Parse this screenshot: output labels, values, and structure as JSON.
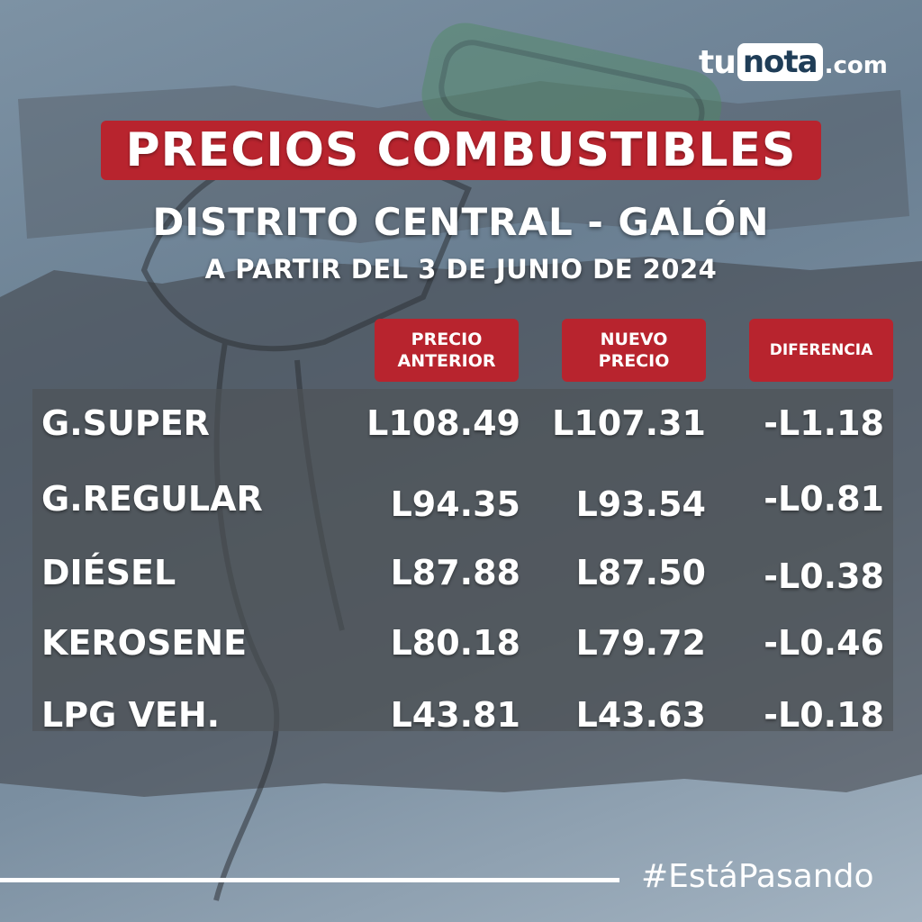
{
  "brand": {
    "logo_tu": "tu",
    "logo_nota": "nota",
    "logo_domain": ".com"
  },
  "header": {
    "title": "PRECIOS COMBUSTIBLES",
    "subtitle": "DISTRITO CENTRAL - GALÓN",
    "date_line": "A PARTIR DEL 3 DE JUNIO DE 2024"
  },
  "table": {
    "columns": [
      "PRECIO\nANTERIOR",
      "NUEVO\nPRECIO",
      "DIFERENCIA"
    ],
    "rows": [
      {
        "name": "G.SUPER",
        "previous": "L108.49",
        "new": "L107.31",
        "difference": "-L1.18"
      },
      {
        "name": "G.REGULAR",
        "previous": "L94.35",
        "new": "L93.54",
        "difference": "-L0.81"
      },
      {
        "name": "DIÉSEL",
        "previous": "L87.88",
        "new": "L87.50",
        "difference": "-L0.38"
      },
      {
        "name": "KEROSENE",
        "previous": "L80.18",
        "new": "L79.72",
        "difference": "-L0.46"
      },
      {
        "name": "LPG VEH.",
        "previous": "L43.81",
        "new": "L43.63",
        "difference": "-L0.18"
      }
    ]
  },
  "footer": {
    "hashtag": "#EstáPasando"
  },
  "colors": {
    "accent_red": "#b8242e",
    "background_blue": "#7d92a4",
    "logo_navy": "#1f3d57"
  },
  "icons": {
    "background_art": "fuel-nozzle-icon"
  }
}
